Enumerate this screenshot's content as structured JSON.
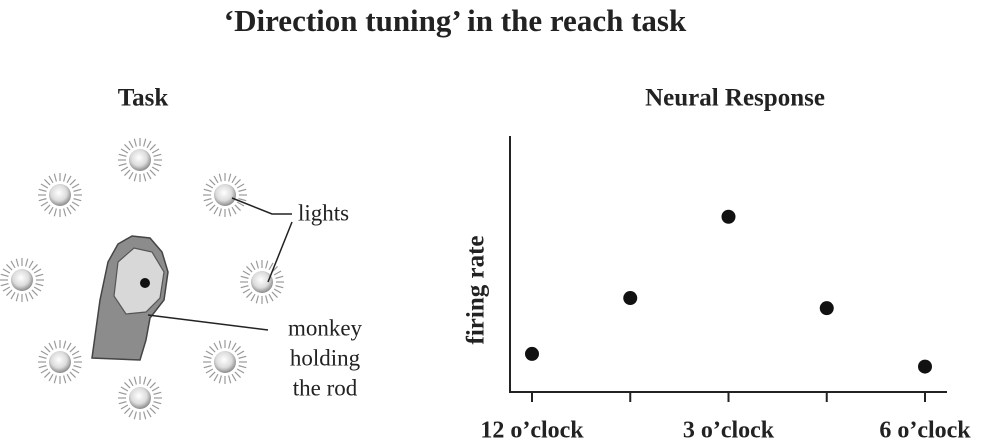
{
  "title": "‘Direction tuning’ in the reach task",
  "task": {
    "heading": "Task",
    "lights_label": "lights",
    "monkey_label": [
      "monkey",
      "holding",
      "the rod"
    ]
  },
  "chart_data": {
    "type": "scatter",
    "title": "Neural Response",
    "y_label": "firing rate",
    "categories": [
      "12 o’clock",
      null,
      "3 o’clock",
      null,
      "6 o’clock"
    ],
    "values": [
      1.5,
      3.7,
      6.9,
      3.3,
      1.0
    ],
    "color": "#111111",
    "ylim": [
      0,
      10
    ]
  }
}
